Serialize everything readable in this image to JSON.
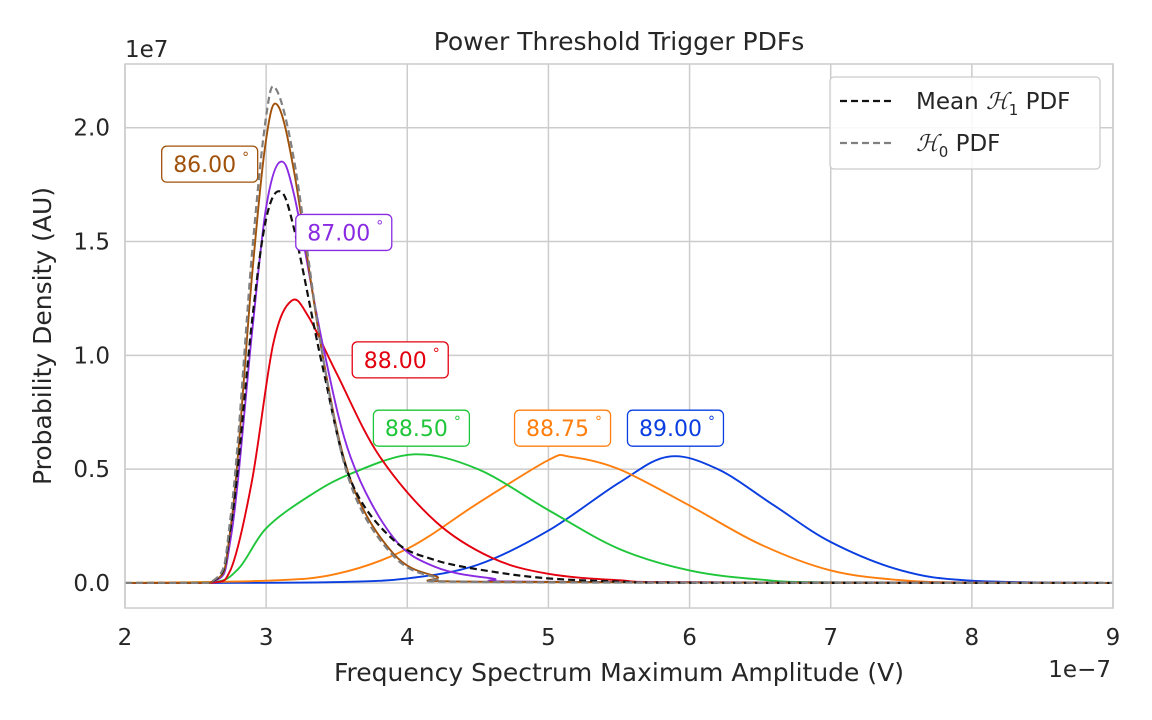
{
  "chart_data": {
    "type": "line",
    "title": "Power Threshold Trigger PDFs",
    "xlabel": "Frequency Spectrum Maximum Amplitude (V)",
    "ylabel": "Probability Density (AU)",
    "x_offset_label": "1e−7",
    "y_offset_label": "1e7",
    "xlim": [
      2e-07,
      9e-07
    ],
    "ylim": [
      -1100000.0,
      22800000.0
    ],
    "xticks": [
      2e-07,
      3e-07,
      4e-07,
      5e-07,
      6e-07,
      7e-07,
      8e-07,
      9e-07
    ],
    "xtick_labels": [
      "2",
      "3",
      "4",
      "5",
      "6",
      "7",
      "8",
      "9"
    ],
    "yticks": [
      0,
      5000000.0,
      10000000.0,
      15000000.0,
      20000000.0
    ],
    "ytick_labels": [
      "0.0",
      "0.5",
      "1.0",
      "1.5",
      "2.0"
    ],
    "grid": true,
    "legend_position": "top-right",
    "legend": [
      {
        "label_prefix": "Mean ",
        "symbol": "ℋ",
        "subscript": "1",
        "label_suffix": " PDF",
        "color": "#111111",
        "dashed": true
      },
      {
        "label_prefix": "",
        "symbol": "ℋ",
        "subscript": "0",
        "label_suffix": " PDF",
        "color": "#808080",
        "dashed": true
      }
    ],
    "series": [
      {
        "label": "89.00",
        "color": "#0a3ee0",
        "dashed": false,
        "x": [
          2.6e-07,
          3.5e-07,
          4e-07,
          4.5e-07,
          5e-07,
          5.5e-07,
          5.85e-07,
          6.2e-07,
          6.6e-07,
          7e-07,
          7.5e-07,
          8e-07,
          9e-07
        ],
        "y": [
          0,
          40000.0,
          200000.0,
          800000.0,
          2300000.0,
          4400000.0,
          5550000.0,
          5000000.0,
          3400000.0,
          1800000.0,
          550000.0,
          100000.0,
          0
        ]
      },
      {
        "label": "88.75",
        "color": "#ff7f0e",
        "dashed": false,
        "x": [
          2e-07,
          3e-07,
          3.5e-07,
          4e-07,
          4.5e-07,
          5e-07,
          5.15e-07,
          5.5e-07,
          6e-07,
          6.5e-07,
          7e-07,
          7.5e-07,
          8e-07,
          9e-07
        ],
        "y": [
          0,
          100000.0,
          400000.0,
          1500000.0,
          3500000.0,
          5400000.0,
          5550000.0,
          5000000.0,
          3400000.0,
          1700000.0,
          550000.0,
          120000.0,
          20000.0,
          0
        ]
      },
      {
        "label": "88.50",
        "color": "#1fc63a",
        "dashed": false,
        "x": [
          2e-07,
          2.6e-07,
          2.8e-07,
          3e-07,
          3.3e-07,
          3.6e-07,
          4.05e-07,
          4.5e-07,
          5e-07,
          5.5e-07,
          6e-07,
          6.5e-07,
          7e-07,
          9e-07
        ],
        "y": [
          0,
          10000.0,
          600000.0,
          2400000.0,
          3800000.0,
          4800000.0,
          5650000.0,
          5000000.0,
          3200000.0,
          1500000.0,
          550000.0,
          150000.0,
          30000.0,
          0
        ]
      },
      {
        "label": "88.00",
        "color": "#e3000f",
        "dashed": false,
        "x": [
          2e-07,
          2.6e-07,
          2.75e-07,
          2.9e-07,
          3.05e-07,
          3.18e-07,
          3.3e-07,
          3.5e-07,
          3.8e-07,
          4.2e-07,
          4.6e-07,
          5e-07,
          5.5e-07,
          6e-07,
          9e-07
        ],
        "y": [
          0,
          0,
          600000.0,
          4500000.0,
          10500000.0,
          12400000.0,
          11700000.0,
          9200000.0,
          5600000.0,
          2700000.0,
          1100000.0,
          400000.0,
          120000.0,
          30000.0,
          0
        ]
      },
      {
        "label": "87.00",
        "color": "#8a2be2",
        "dashed": false,
        "x": [
          2e-07,
          2.6e-07,
          2.75e-07,
          2.9e-07,
          3e-07,
          3.1e-07,
          3.2e-07,
          3.4e-07,
          3.6e-07,
          3.9e-07,
          4.2e-07,
          4.6e-07,
          5e-07,
          9e-07
        ],
        "y": [
          0,
          0,
          2000000.0,
          11000000.0,
          16500000.0,
          18500000.0,
          17000000.0,
          10500000.0,
          5500000.0,
          2000000.0,
          700000.0,
          200000.0,
          50000.0,
          0
        ]
      },
      {
        "label": "86.00",
        "color": "#a0510a",
        "dashed": false,
        "x": [
          2e-07,
          2.6e-07,
          2.75e-07,
          2.9e-07,
          3e-07,
          3.08e-07,
          3.2e-07,
          3.4e-07,
          3.6e-07,
          3.9e-07,
          4.2e-07,
          4.6e-07,
          9e-07
        ],
        "y": [
          0,
          0,
          2500000.0,
          13500000.0,
          19500000.0,
          21000000.0,
          18000000.0,
          10000000.0,
          4500000.0,
          1300000.0,
          300000.0,
          50000.0,
          0
        ]
      },
      {
        "label": "Mean H1",
        "color": "#111111",
        "dashed": true,
        "x": [
          2e-07,
          2.6e-07,
          2.75e-07,
          2.9e-07,
          3e-07,
          3.1e-07,
          3.2e-07,
          3.4e-07,
          3.6e-07,
          3.9e-07,
          4.2e-07,
          4.6e-07,
          5e-07,
          5.5e-07,
          6e-07,
          9e-07
        ],
        "y": [
          0,
          0,
          2500000.0,
          11500000.0,
          16000000.0,
          17200000.0,
          15500000.0,
          9500000.0,
          4500000.0,
          1900000.0,
          1000000.0,
          500000.0,
          200000.0,
          60000.0,
          10000.0,
          0
        ]
      },
      {
        "label": "H0",
        "color": "#808080",
        "dashed": true,
        "x": [
          2e-07,
          2.6e-07,
          2.75e-07,
          2.9e-07,
          3e-07,
          3.07e-07,
          3.2e-07,
          3.4e-07,
          3.6e-07,
          3.9e-07,
          4.2e-07,
          4.6e-07,
          9e-07
        ],
        "y": [
          0,
          0,
          3000000.0,
          14500000.0,
          20500000.0,
          21700000.0,
          18500000.0,
          10000000.0,
          4300000.0,
          1200000.0,
          250000.0,
          40000.0,
          0
        ]
      }
    ],
    "annotations": [
      {
        "text": "86.00",
        "unit": "°",
        "color": "#a0510a",
        "x": 2.6e-07,
        "y": 18400000.0
      },
      {
        "text": "87.00",
        "unit": "°",
        "color": "#8a2be2",
        "x": 3.55e-07,
        "y": 15400000.0
      },
      {
        "text": "88.00",
        "unit": "°",
        "color": "#e3000f",
        "x": 3.95e-07,
        "y": 9800000.0
      },
      {
        "text": "88.50",
        "unit": "°",
        "color": "#1fc63a",
        "x": 4.1e-07,
        "y": 6800000.0
      },
      {
        "text": "88.75",
        "unit": "°",
        "color": "#ff7f0e",
        "x": 5.1e-07,
        "y": 6800000.0
      },
      {
        "text": "89.00",
        "unit": "°",
        "color": "#0a3ee0",
        "x": 5.9e-07,
        "y": 6800000.0
      }
    ]
  }
}
